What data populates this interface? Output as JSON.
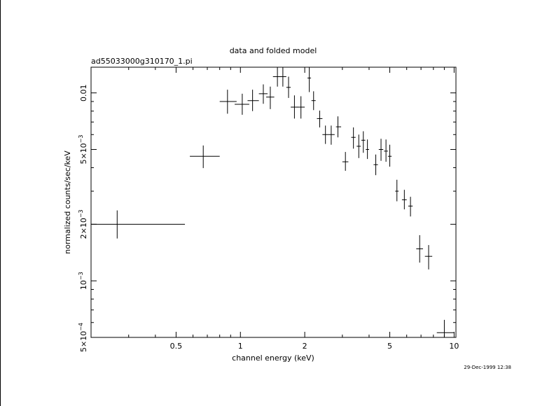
{
  "chart_data": {
    "type": "scatter",
    "title": "data and folded model",
    "subtitle": "ad55033000g310170_1.pi",
    "xlabel": "channel energy (keV)",
    "ylabel": "normalized counts/sec/keV",
    "timestamp": "29-Dec-1999 12:38",
    "x_scale": "log",
    "y_scale": "log",
    "xlim": [
      0.2,
      10.2
    ],
    "ylim": [
      0.0005,
      0.0137
    ],
    "grid": false,
    "x_ticks": [
      {
        "value": 0.5,
        "label": "0.5"
      },
      {
        "value": 1,
        "label": "1"
      },
      {
        "value": 2,
        "label": "2"
      },
      {
        "value": 5,
        "label": "5"
      },
      {
        "value": 10,
        "label": "10"
      }
    ],
    "y_ticks": [
      {
        "value": 0.0005,
        "base": "5×10",
        "exp": "−4"
      },
      {
        "value": 0.001,
        "base": "10",
        "exp": "−3"
      },
      {
        "value": 0.002,
        "base": "2×10",
        "exp": "−3"
      },
      {
        "value": 0.005,
        "base": "5×10",
        "exp": "−3"
      },
      {
        "value": 0.01,
        "base": "0.01",
        "exp": ""
      }
    ],
    "points": [
      {
        "x": 0.265,
        "xlo": 0.2,
        "xhi": 0.55,
        "y": 0.002,
        "ylo": 0.00168,
        "yhi": 0.00237
      },
      {
        "x": 0.67,
        "xlo": 0.58,
        "xhi": 0.8,
        "y": 0.0046,
        "ylo": 0.00398,
        "yhi": 0.00525
      },
      {
        "x": 0.87,
        "xlo": 0.8,
        "xhi": 0.96,
        "y": 0.009,
        "ylo": 0.00775,
        "yhi": 0.0104
      },
      {
        "x": 1.02,
        "xlo": 0.94,
        "xhi": 1.1,
        "y": 0.0087,
        "ylo": 0.00765,
        "yhi": 0.0099
      },
      {
        "x": 1.14,
        "xlo": 1.08,
        "xhi": 1.22,
        "y": 0.0091,
        "ylo": 0.008,
        "yhi": 0.0104
      },
      {
        "x": 1.28,
        "xlo": 1.22,
        "xhi": 1.34,
        "y": 0.0099,
        "ylo": 0.00875,
        "yhi": 0.0111
      },
      {
        "x": 1.38,
        "xlo": 1.32,
        "xhi": 1.44,
        "y": 0.0095,
        "ylo": 0.0082,
        "yhi": 0.0108
      },
      {
        "x": 1.49,
        "xlo": 1.42,
        "xhi": 1.56,
        "y": 0.0122,
        "ylo": 0.0108,
        "yhi": 0.0137
      },
      {
        "x": 1.58,
        "xlo": 1.52,
        "xhi": 1.64,
        "y": 0.0122,
        "ylo": 0.0108,
        "yhi": 0.0137
      },
      {
        "x": 1.68,
        "xlo": 1.64,
        "xhi": 1.72,
        "y": 0.0107,
        "ylo": 0.0094,
        "yhi": 0.0122
      },
      {
        "x": 1.79,
        "xlo": 1.72,
        "xhi": 1.86,
        "y": 0.0084,
        "ylo": 0.0073,
        "yhi": 0.0097
      },
      {
        "x": 1.92,
        "xlo": 1.84,
        "xhi": 2.0,
        "y": 0.0084,
        "ylo": 0.0073,
        "yhi": 0.0096
      },
      {
        "x": 2.1,
        "xlo": 2.06,
        "xhi": 2.14,
        "y": 0.012,
        "ylo": 0.0101,
        "yhi": 0.0137
      },
      {
        "x": 2.2,
        "xlo": 2.15,
        "xhi": 2.25,
        "y": 0.0091,
        "ylo": 0.0081,
        "yhi": 0.0102
      },
      {
        "x": 2.35,
        "xlo": 2.28,
        "xhi": 2.42,
        "y": 0.0073,
        "ylo": 0.00655,
        "yhi": 0.00805
      },
      {
        "x": 2.5,
        "xlo": 2.42,
        "xhi": 2.58,
        "y": 0.006,
        "ylo": 0.00535,
        "yhi": 0.0067
      },
      {
        "x": 2.66,
        "xlo": 2.58,
        "xhi": 2.76,
        "y": 0.006,
        "ylo": 0.0053,
        "yhi": 0.0067
      },
      {
        "x": 2.86,
        "xlo": 2.8,
        "xhi": 2.96,
        "y": 0.0066,
        "ylo": 0.0058,
        "yhi": 0.0075
      },
      {
        "x": 3.1,
        "xlo": 3.0,
        "xhi": 3.2,
        "y": 0.0043,
        "ylo": 0.00385,
        "yhi": 0.00485
      },
      {
        "x": 3.38,
        "xlo": 3.3,
        "xhi": 3.46,
        "y": 0.0058,
        "ylo": 0.00505,
        "yhi": 0.00655
      },
      {
        "x": 3.58,
        "xlo": 3.5,
        "xhi": 3.66,
        "y": 0.0052,
        "ylo": 0.0045,
        "yhi": 0.006
      },
      {
        "x": 3.76,
        "xlo": 3.68,
        "xhi": 3.84,
        "y": 0.0056,
        "ylo": 0.0048,
        "yhi": 0.00625
      },
      {
        "x": 3.93,
        "xlo": 3.86,
        "xhi": 4.0,
        "y": 0.005,
        "ylo": 0.00445,
        "yhi": 0.00565
      },
      {
        "x": 4.3,
        "xlo": 4.2,
        "xhi": 4.4,
        "y": 0.00415,
        "ylo": 0.00365,
        "yhi": 0.0047
      },
      {
        "x": 4.55,
        "xlo": 4.44,
        "xhi": 4.66,
        "y": 0.005,
        "ylo": 0.00435,
        "yhi": 0.0057
      },
      {
        "x": 4.8,
        "xlo": 4.7,
        "xhi": 4.9,
        "y": 0.0049,
        "ylo": 0.0043,
        "yhi": 0.00565
      },
      {
        "x": 5.0,
        "xlo": 4.9,
        "xhi": 5.1,
        "y": 0.0046,
        "ylo": 0.00405,
        "yhi": 0.0053
      },
      {
        "x": 5.4,
        "xlo": 5.3,
        "xhi": 5.5,
        "y": 0.003,
        "ylo": 0.00265,
        "yhi": 0.00345
      },
      {
        "x": 5.85,
        "xlo": 5.7,
        "xhi": 6.0,
        "y": 0.0027,
        "ylo": 0.0024,
        "yhi": 0.00305
      },
      {
        "x": 6.25,
        "xlo": 6.1,
        "xhi": 6.4,
        "y": 0.0025,
        "ylo": 0.0022,
        "yhi": 0.0028
      },
      {
        "x": 6.9,
        "xlo": 6.65,
        "xhi": 7.15,
        "y": 0.00148,
        "ylo": 0.00125,
        "yhi": 0.00175
      },
      {
        "x": 7.6,
        "xlo": 7.3,
        "xhi": 7.9,
        "y": 0.00135,
        "ylo": 0.00115,
        "yhi": 0.00155
      },
      {
        "x": 9.0,
        "xlo": 8.3,
        "xhi": 10.0,
        "y": 0.00053,
        "ylo": 0.00046,
        "yhi": 0.00062
      }
    ]
  }
}
